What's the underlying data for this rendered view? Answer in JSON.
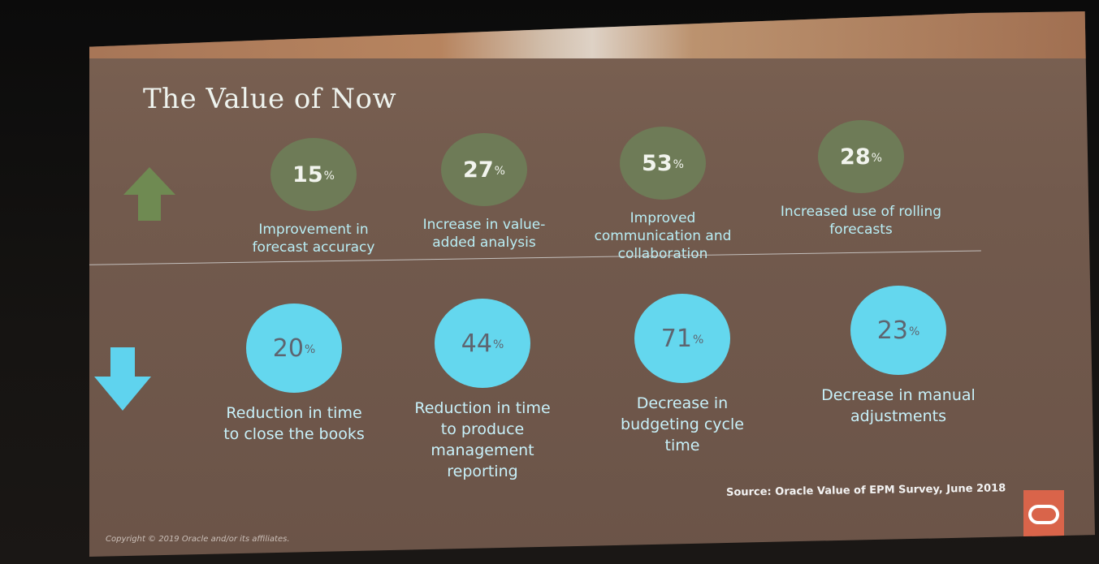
{
  "title": "The Value of Now",
  "increases": [
    {
      "value": "15",
      "unit": "%",
      "label": "Improvement in\nforecast accuracy"
    },
    {
      "value": "27",
      "unit": "%",
      "label": "Increase in value-\nadded analysis"
    },
    {
      "value": "53",
      "unit": "%",
      "label": "Improved\ncommunication and\ncollaboration"
    },
    {
      "value": "28",
      "unit": "%",
      "label": "Increased use of rolling\nforecasts"
    }
  ],
  "decreases": [
    {
      "value": "20",
      "unit": "%",
      "label": "Reduction in time\nto close the books"
    },
    {
      "value": "44",
      "unit": "%",
      "label": "Reduction in time\nto produce\nmanagement\nreporting"
    },
    {
      "value": "71",
      "unit": "%",
      "label": "Decrease in\nbudgeting cycle\ntime"
    },
    {
      "value": "23",
      "unit": "%",
      "label": "Decrease in manual\nadjustments"
    }
  ],
  "source": "Source: Oracle Value of EPM Survey, June 2018",
  "copyright": "Copyright © 2019 Oracle and/or its affiliates.",
  "colors": {
    "increase_circle": "#6e7b57",
    "decrease_circle": "#64d7ee",
    "up_arrow": "#6f8a52",
    "down_arrow": "#5fd3ee",
    "logo": "#d9644a"
  },
  "icons": {
    "up": "arrow-up-icon",
    "down": "arrow-down-icon",
    "logo": "oracle-logo-icon"
  }
}
